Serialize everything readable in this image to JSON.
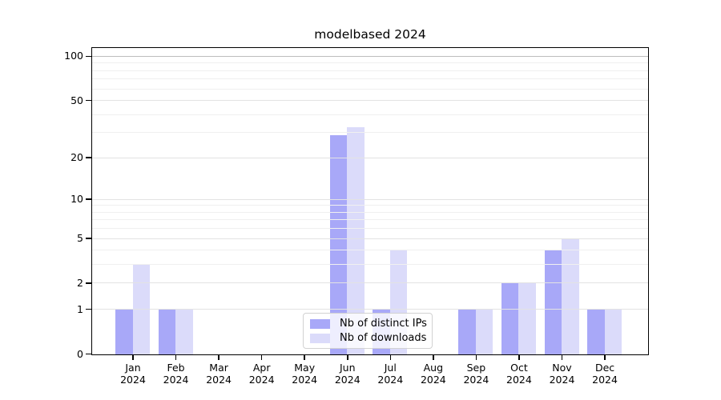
{
  "title": "modelbased 2024",
  "colors": {
    "ips_bar": "#a8a8f8",
    "downloads_bar": "#dbdbfa",
    "grid_minor": "#f0f0f0",
    "grid_major": "#e3e3e3",
    "grid_top": "#bdbdbd",
    "spine": "#000000"
  },
  "legend": {
    "items": [
      {
        "label": "Nb of distinct IPs",
        "color_key": "ips_bar"
      },
      {
        "label": "Nb of downloads",
        "color_key": "downloads_bar"
      }
    ]
  },
  "chart_data": {
    "type": "bar",
    "title": "modelbased 2024",
    "yscale": "log1p",
    "categories": [
      "Jan 2024",
      "Feb 2024",
      "Mar 2024",
      "Apr 2024",
      "May 2024",
      "Jun 2024",
      "Jul 2024",
      "Aug 2024",
      "Sep 2024",
      "Oct 2024",
      "Nov 2024",
      "Dec 2024"
    ],
    "series": [
      {
        "name": "Nb of distinct IPs",
        "values": [
          1,
          1,
          0,
          0,
          0,
          29,
          1,
          0,
          1,
          2,
          4,
          1
        ]
      },
      {
        "name": "Nb of downloads",
        "values": [
          3,
          1,
          0,
          0,
          0,
          33,
          4,
          0,
          1,
          2,
          5,
          1
        ]
      }
    ],
    "y_ticks": [
      0,
      1,
      2,
      5,
      10,
      20,
      50,
      100
    ],
    "y_minor_ticks": [
      3,
      4,
      6,
      7,
      8,
      9,
      30,
      40,
      60,
      70,
      80,
      90
    ],
    "ylim": [
      0,
      118
    ],
    "xlabel": "",
    "ylabel": "",
    "grid": "horizontal",
    "legend_position": "lower center"
  }
}
